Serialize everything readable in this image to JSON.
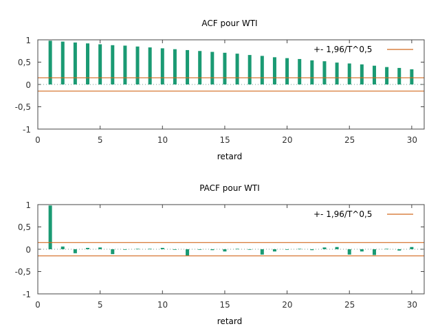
{
  "chart_data": [
    {
      "type": "bar",
      "title": "ACF pour WTI",
      "xlabel": "retard",
      "ylabel": "",
      "xlim": [
        0,
        31
      ],
      "ylim": [
        -1,
        1
      ],
      "xticks": [
        "0",
        "5",
        "10",
        "15",
        "20",
        "25",
        "30"
      ],
      "yticks": [
        "1",
        "0,5",
        "0",
        "-0,5",
        "-1"
      ],
      "grid": false,
      "legend_position": "top-right",
      "x": [
        1,
        2,
        3,
        4,
        5,
        6,
        7,
        8,
        9,
        10,
        11,
        12,
        13,
        14,
        15,
        16,
        17,
        18,
        19,
        20,
        21,
        22,
        23,
        24,
        25,
        26,
        27,
        28,
        29,
        30
      ],
      "series": [
        {
          "values": [
            0.98,
            0.96,
            0.94,
            0.92,
            0.9,
            0.88,
            0.87,
            0.85,
            0.83,
            0.81,
            0.79,
            0.77,
            0.75,
            0.73,
            0.71,
            0.69,
            0.66,
            0.64,
            0.61,
            0.59,
            0.57,
            0.54,
            0.52,
            0.49,
            0.47,
            0.45,
            0.42,
            0.39,
            0.37,
            0.34
          ],
          "color": "#1a9a73"
        }
      ],
      "bounds": {
        "label": "+- 1,96/T^0,5",
        "value": 0.149,
        "color": "#d2691e"
      }
    },
    {
      "type": "bar",
      "title": "PACF pour WTI",
      "xlabel": "retard",
      "ylabel": "",
      "xlim": [
        0,
        31
      ],
      "ylim": [
        -1,
        1
      ],
      "xticks": [
        "0",
        "5",
        "10",
        "15",
        "20",
        "25",
        "30"
      ],
      "yticks": [
        "1",
        "0,5",
        "0",
        "-0,5",
        "-1"
      ],
      "grid": false,
      "legend_position": "top-right",
      "x": [
        1,
        2,
        3,
        4,
        5,
        6,
        7,
        8,
        9,
        10,
        11,
        12,
        13,
        14,
        15,
        16,
        17,
        18,
        19,
        20,
        21,
        22,
        23,
        24,
        25,
        26,
        27,
        28,
        29,
        30
      ],
      "series": [
        {
          "values": [
            0.98,
            0.06,
            -0.09,
            0.03,
            0.04,
            -0.11,
            -0.01,
            0.01,
            0.01,
            0.03,
            -0.01,
            -0.14,
            -0.01,
            -0.02,
            -0.05,
            0.01,
            -0.01,
            -0.12,
            -0.05,
            0.0,
            0.01,
            -0.02,
            0.04,
            0.05,
            -0.12,
            -0.05,
            -0.13,
            0.01,
            -0.03,
            0.05
          ],
          "color": "#1a9a73"
        }
      ],
      "bounds": {
        "label": "+- 1,96/T^0,5",
        "value": 0.149,
        "color": "#d2691e"
      }
    }
  ]
}
